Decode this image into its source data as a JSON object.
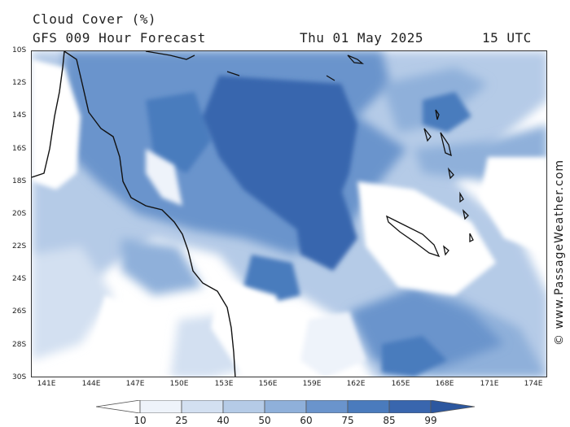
{
  "header": {
    "title": "Cloud Cover (%)",
    "subtitle": "GFS 009 Hour Forecast",
    "date": "Thu 01 May 2025",
    "time": "15 UTC"
  },
  "watermark": "© www.PassageWeather.com",
  "map": {
    "lat_labels": [
      "10S",
      "12S",
      "14S",
      "16S",
      "18S",
      "20S",
      "22S",
      "24S",
      "26S",
      "28S",
      "30S"
    ],
    "lon_labels": [
      "141E",
      "144E",
      "147E",
      "150E",
      "153E",
      "156E",
      "159E",
      "162E",
      "165E",
      "168E",
      "171E",
      "174E"
    ],
    "lon_range": [
      140,
      175
    ],
    "lat_range": [
      -30,
      -10
    ],
    "coastline_color": "#111111"
  },
  "legend": {
    "levels": [
      10,
      25,
      40,
      50,
      60,
      75,
      85,
      99
    ],
    "labels": [
      "10",
      "25",
      "40",
      "50",
      "60",
      "75",
      "85",
      "99"
    ],
    "colors": [
      "#ffffff",
      "#eef3fa",
      "#d3e0f1",
      "#b5cbe7",
      "#8fb0da",
      "#6a94cc",
      "#4a7bbd",
      "#3966ae",
      "#2c579f"
    ]
  }
}
